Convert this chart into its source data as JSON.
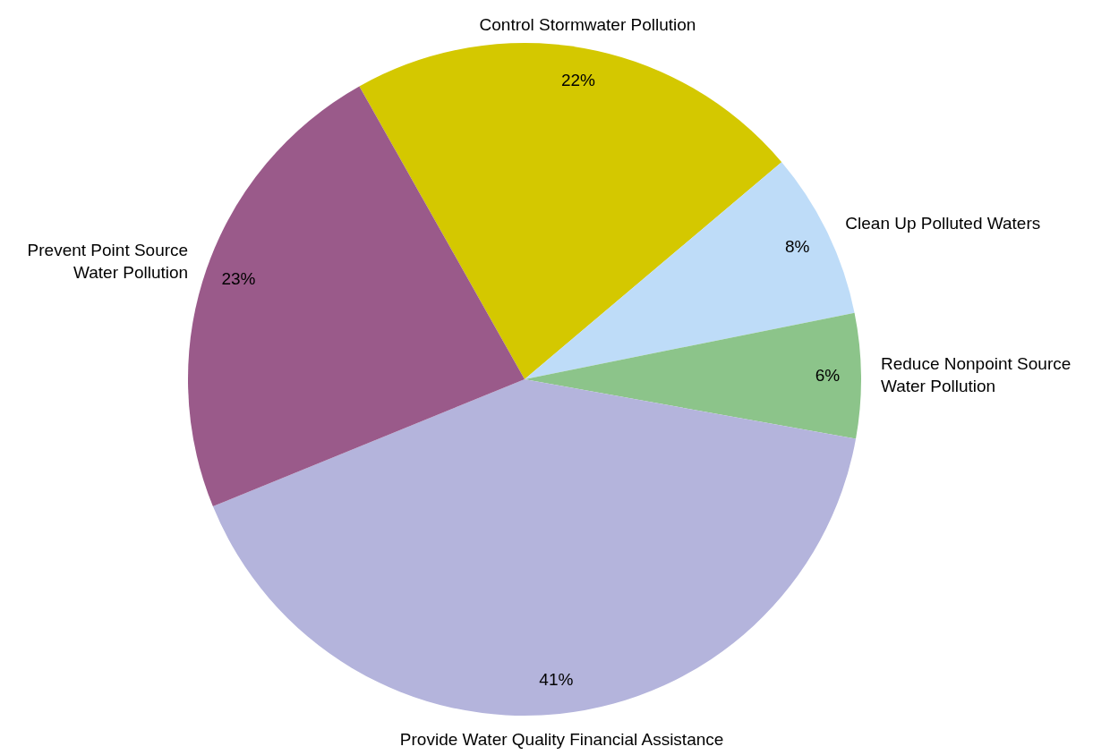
{
  "chart_data": {
    "type": "pie",
    "categories": [
      "Control Stormwater Pollution",
      "Clean Up Polluted Waters",
      "Reduce Nonpoint Source\nWater Pollution",
      "Provide Water Quality Financial Assistance",
      "Prevent Point Source\nWater Pollution"
    ],
    "values": [
      22,
      8,
      6,
      41,
      23
    ],
    "value_labels": [
      "22%",
      "8%",
      "6%",
      "41%",
      "23%"
    ],
    "colors": [
      "#d4c800",
      "#bedcf8",
      "#8cc48a",
      "#b4b4dc",
      "#9a5a8a"
    ],
    "legend": false
  }
}
